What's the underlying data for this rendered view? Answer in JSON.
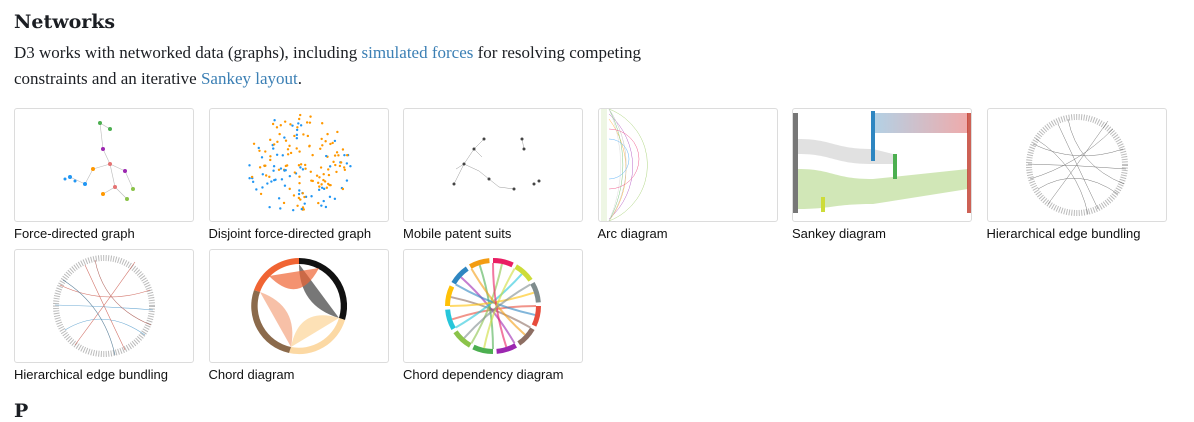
{
  "section": {
    "title": "Networks",
    "desc_part1": "D3 works with networked data (graphs), including ",
    "link1": "simulated forces",
    "desc_part2": " for resolving competing constraints and an iterative ",
    "link2": "Sankey layout",
    "desc_part3": "."
  },
  "cards": [
    {
      "label": "Force-directed graph",
      "icon": "force-graph-thumbnail"
    },
    {
      "label": "Disjoint force-directed graph",
      "icon": "disjoint-force-thumbnail"
    },
    {
      "label": "Mobile patent suits",
      "icon": "patent-suits-thumbnail"
    },
    {
      "label": "Arc diagram",
      "icon": "arc-diagram-thumbnail"
    },
    {
      "label": "Sankey diagram",
      "icon": "sankey-thumbnail"
    },
    {
      "label": "Hierarchical edge bundling",
      "icon": "edge-bundling-thumbnail"
    },
    {
      "label": "Hierarchical edge bundling",
      "icon": "edge-bundling-color-thumbnail"
    },
    {
      "label": "Chord diagram",
      "icon": "chord-thumbnail"
    },
    {
      "label": "Chord dependency diagram",
      "icon": "chord-dependency-thumbnail"
    }
  ],
  "next_section": {
    "title": "P"
  }
}
